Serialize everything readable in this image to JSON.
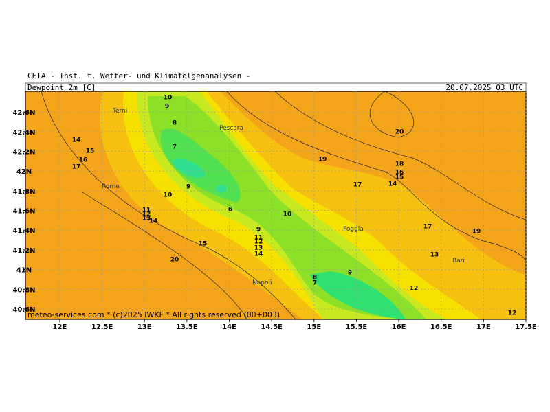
{
  "header": {
    "source": "CETA - Inst. f. Wetter- und Klimafolgenanalysen -",
    "title": "Dewpoint 2m [C]",
    "date": "20.07.2025 03 UTC"
  },
  "footer": "meteo-services.com * (c)2025 IWKF * All rights reserved (00+003)",
  "map": {
    "lonlim": [
      11.595,
      17.5
    ],
    "latlim": [
      40.495,
      42.81
    ],
    "lon_ticks": [
      {
        "value": 12,
        "label": "12E"
      },
      {
        "value": 12.5,
        "label": "12.5E"
      },
      {
        "value": 13,
        "label": "13E"
      },
      {
        "value": 13.5,
        "label": "13.5E"
      },
      {
        "value": 14,
        "label": "14E"
      },
      {
        "value": 14.5,
        "label": "14.5E"
      },
      {
        "value": 15,
        "label": "15E"
      },
      {
        "value": 15.5,
        "label": "15.5E"
      },
      {
        "value": 16,
        "label": "16E"
      },
      {
        "value": 16.5,
        "label": "16.5E"
      },
      {
        "value": 17,
        "label": "17E"
      },
      {
        "value": 17.5,
        "label": "17.5E"
      }
    ],
    "lat_ticks": [
      {
        "value": 42.6,
        "label": "42.6N"
      },
      {
        "value": 42.4,
        "label": "42.4N"
      },
      {
        "value": 42.2,
        "label": "42.2N"
      },
      {
        "value": 42,
        "label": "42N"
      },
      {
        "value": 41.8,
        "label": "41.8N"
      },
      {
        "value": 41.6,
        "label": "41.6N"
      },
      {
        "value": 41.4,
        "label": "41.4N"
      },
      {
        "value": 41.2,
        "label": "41.2N"
      },
      {
        "value": 41,
        "label": "41N"
      },
      {
        "value": 40.8,
        "label": "40.8N"
      },
      {
        "value": 40.6,
        "label": "40.6N"
      }
    ],
    "cities": [
      "Terni",
      "Pescara",
      "Rome",
      "Foggia",
      "Napoli",
      "Bari"
    ],
    "contour_labels": [
      10,
      9,
      8,
      7,
      14,
      15,
      16,
      17,
      9,
      10,
      6,
      11,
      12,
      13,
      14,
      15,
      20,
      9,
      11,
      12,
      13,
      14,
      10,
      19,
      20,
      17,
      18,
      16,
      15,
      14,
      17,
      19,
      13,
      12,
      9,
      8,
      7,
      12
    ]
  }
}
